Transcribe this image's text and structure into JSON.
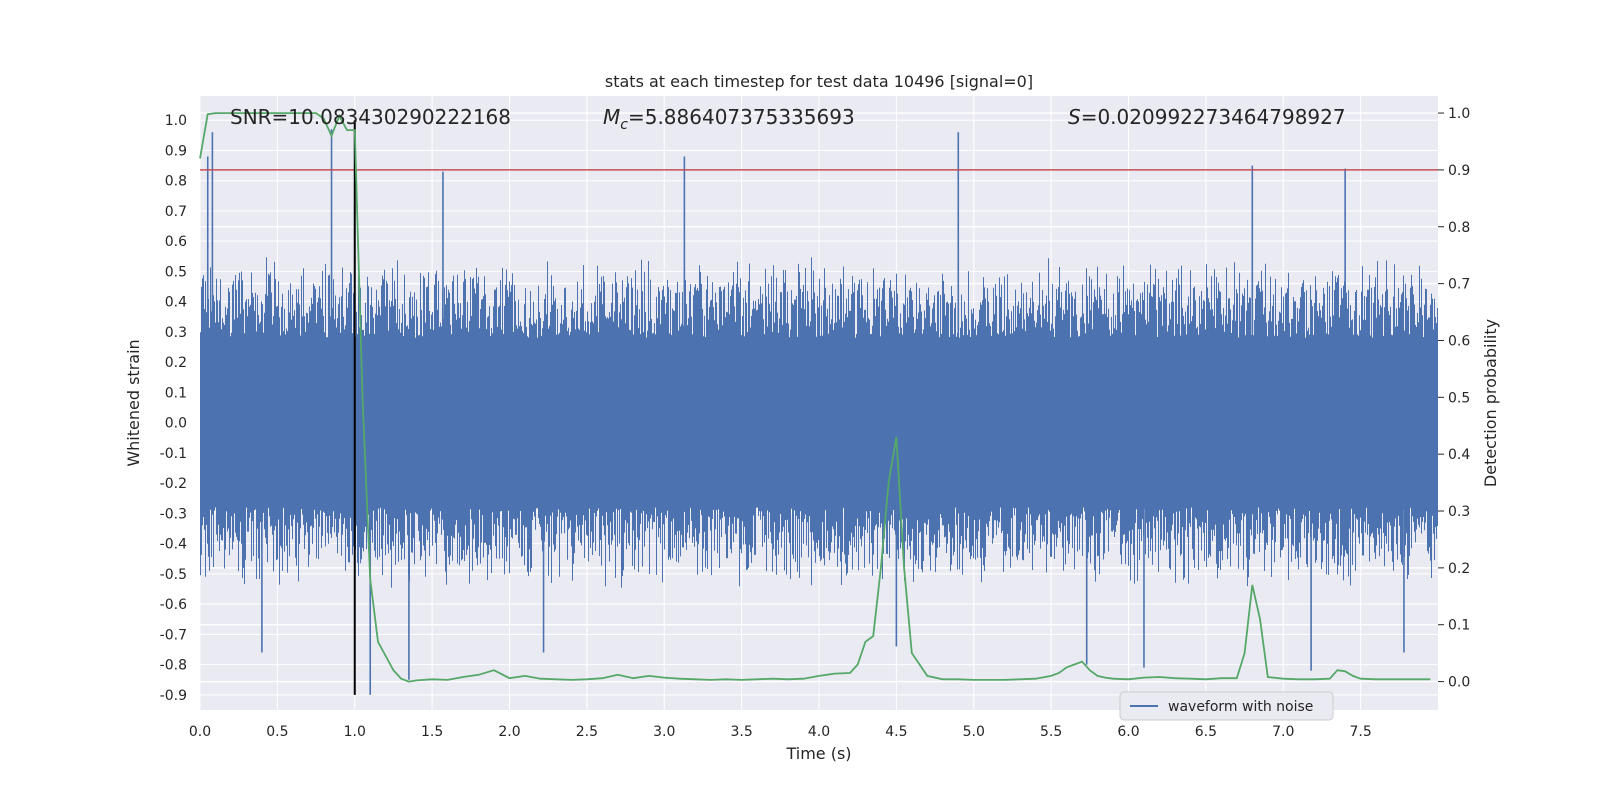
{
  "chart_data": {
    "type": "line",
    "title": "stats at each timestep for test data 10496 [signal=0]",
    "xlabel": "Time (s)",
    "ylabel": "Whitened strain",
    "y2label": "Detection probability",
    "xlim": [
      0.0,
      8.0
    ],
    "ylim": [
      -0.95,
      1.08
    ],
    "y2lim": [
      -0.05,
      1.03
    ],
    "xticks": [
      "0.0",
      "0.5",
      "1.0",
      "1.5",
      "2.0",
      "2.5",
      "3.0",
      "3.5",
      "4.0",
      "4.5",
      "5.0",
      "5.5",
      "6.0",
      "6.5",
      "7.0",
      "7.5"
    ],
    "yticks": [
      "1.0",
      "0.9",
      "0.8",
      "0.7",
      "0.6",
      "0.5",
      "0.4",
      "0.3",
      "0.2",
      "0.1",
      "0.0",
      "-0.1",
      "-0.2",
      "-0.3",
      "-0.4",
      "-0.5",
      "-0.6",
      "-0.7",
      "-0.8",
      "-0.9"
    ],
    "y2ticks": [
      "1.0",
      "0.9",
      "0.8",
      "0.7",
      "0.6",
      "0.5",
      "0.4",
      "0.3",
      "0.2",
      "0.1",
      "0.0"
    ],
    "annotations": {
      "snr": "SNR=10.083430290222168",
      "mc_symbol": "M",
      "mc_sub": "c",
      "mc_value": "=5.886407375335693",
      "s_symbol": "S",
      "s_value": "=0.020992273464798927"
    },
    "legend": {
      "label": "waveform with noise",
      "placement": "bottom-right"
    },
    "threshold": {
      "value": 0.9,
      "axis": "right"
    },
    "marker_time": 1.0,
    "series": [
      {
        "name": "waveform with noise",
        "axis": "left",
        "style": "dense-oscillation",
        "core_amplitude": 0.28,
        "typical_peak": 0.55,
        "extreme_peaks": [
          {
            "x": 0.05,
            "y": 0.88
          },
          {
            "x": 0.08,
            "y": 0.96
          },
          {
            "x": 0.85,
            "y": 0.97
          },
          {
            "x": 1.1,
            "y": -0.9
          },
          {
            "x": 1.35,
            "y": -0.85
          },
          {
            "x": 1.57,
            "y": 0.83
          },
          {
            "x": 3.13,
            "y": 0.88
          },
          {
            "x": 4.9,
            "y": 0.96
          },
          {
            "x": 6.8,
            "y": 0.85
          },
          {
            "x": 7.4,
            "y": 0.84
          },
          {
            "x": 0.4,
            "y": -0.76
          },
          {
            "x": 2.22,
            "y": -0.76
          },
          {
            "x": 6.1,
            "y": -0.81
          },
          {
            "x": 7.18,
            "y": -0.82
          },
          {
            "x": 7.78,
            "y": -0.76
          },
          {
            "x": 5.73,
            "y": -0.8
          },
          {
            "x": 4.5,
            "y": -0.74
          }
        ]
      },
      {
        "name": "detection probability",
        "axis": "right",
        "x": [
          0.0,
          0.05,
          0.1,
          0.2,
          0.3,
          0.4,
          0.5,
          0.6,
          0.7,
          0.75,
          0.8,
          0.85,
          0.9,
          0.95,
          1.0,
          1.05,
          1.1,
          1.15,
          1.2,
          1.25,
          1.3,
          1.35,
          1.4,
          1.5,
          1.6,
          1.7,
          1.8,
          1.9,
          2.0,
          2.1,
          2.2,
          2.3,
          2.4,
          2.5,
          2.6,
          2.7,
          2.8,
          2.9,
          3.0,
          3.1,
          3.2,
          3.3,
          3.4,
          3.5,
          3.6,
          3.7,
          3.8,
          3.9,
          4.0,
          4.05,
          4.1,
          4.2,
          4.25,
          4.3,
          4.35,
          4.4,
          4.45,
          4.5,
          4.55,
          4.6,
          4.65,
          4.7,
          4.8,
          4.9,
          5.0,
          5.1,
          5.2,
          5.3,
          5.4,
          5.5,
          5.55,
          5.6,
          5.65,
          5.7,
          5.75,
          5.8,
          5.85,
          5.9,
          6.0,
          6.1,
          6.2,
          6.3,
          6.4,
          6.5,
          6.6,
          6.7,
          6.75,
          6.8,
          6.85,
          6.9,
          7.0,
          7.1,
          7.2,
          7.3,
          7.35,
          7.4,
          7.45,
          7.5,
          7.6,
          7.7,
          7.8,
          7.95
        ],
        "values": [
          0.92,
          0.998,
          1.0,
          1.0,
          1.0,
          1.0,
          1.0,
          1.0,
          1.0,
          1.0,
          0.99,
          0.96,
          0.995,
          0.97,
          0.97,
          0.5,
          0.18,
          0.07,
          0.045,
          0.02,
          0.005,
          0.0,
          0.002,
          0.004,
          0.003,
          0.008,
          0.012,
          0.02,
          0.006,
          0.01,
          0.005,
          0.004,
          0.003,
          0.004,
          0.006,
          0.012,
          0.006,
          0.01,
          0.007,
          0.005,
          0.004,
          0.003,
          0.004,
          0.003,
          0.004,
          0.005,
          0.004,
          0.005,
          0.01,
          0.012,
          0.014,
          0.015,
          0.03,
          0.07,
          0.08,
          0.2,
          0.35,
          0.43,
          0.2,
          0.05,
          0.03,
          0.01,
          0.004,
          0.004,
          0.003,
          0.003,
          0.003,
          0.004,
          0.005,
          0.01,
          0.015,
          0.025,
          0.03,
          0.035,
          0.02,
          0.01,
          0.007,
          0.005,
          0.004,
          0.007,
          0.008,
          0.006,
          0.005,
          0.004,
          0.006,
          0.006,
          0.05,
          0.17,
          0.11,
          0.008,
          0.005,
          0.004,
          0.004,
          0.005,
          0.02,
          0.018,
          0.01,
          0.005,
          0.004,
          0.004,
          0.004,
          0.004
        ]
      }
    ]
  }
}
